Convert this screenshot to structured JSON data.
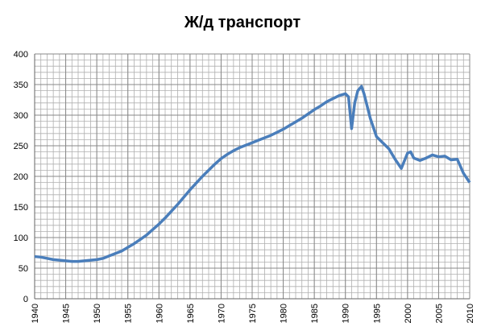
{
  "chart_data": {
    "type": "line",
    "title": "Ж/д транспорт",
    "x": [
      1940,
      1941,
      1942,
      1943,
      1944,
      1945,
      1946,
      1947,
      1948,
      1949,
      1950,
      1951,
      1952,
      1953,
      1954,
      1955,
      1956,
      1957,
      1958,
      1959,
      1960,
      1961,
      1962,
      1963,
      1964,
      1965,
      1966,
      1967,
      1968,
      1969,
      1970,
      1971,
      1972,
      1973,
      1974,
      1975,
      1976,
      1977,
      1978,
      1979,
      1980,
      1981,
      1982,
      1983,
      1984,
      1985,
      1986,
      1987,
      1988,
      1989,
      1990,
      1990.5,
      1991,
      1991.5,
      1992,
      1992.6,
      1993,
      1994,
      1995,
      1996,
      1997,
      1998,
      1999,
      2000,
      2000.5,
      2001,
      2002,
      2003,
      2004,
      2005,
      2006,
      2007,
      2008,
      2009,
      2010
    ],
    "series": [
      {
        "name": "Ж/д транспорт",
        "color": "#4a7ebb",
        "values": [
          69,
          68,
          66,
          64,
          63,
          62,
          61,
          61,
          62,
          63,
          64,
          66,
          70,
          74,
          78,
          84,
          90,
          97,
          104,
          113,
          122,
          132,
          143,
          154,
          166,
          178,
          189,
          200,
          210,
          220,
          229,
          236,
          242,
          247,
          251,
          255,
          259,
          263,
          267,
          272,
          277,
          283,
          289,
          295,
          302,
          309,
          315,
          322,
          327,
          332,
          335,
          330,
          278,
          320,
          340,
          347,
          335,
          295,
          265,
          255,
          245,
          228,
          213,
          238,
          240,
          230,
          226,
          230,
          235,
          232,
          233,
          227,
          228,
          205,
          190
        ]
      }
    ],
    "xlim": [
      1940,
      2010
    ],
    "xticks": [
      1940,
      1945,
      1950,
      1955,
      1960,
      1965,
      1970,
      1975,
      1980,
      1985,
      1990,
      1995,
      2000,
      2005,
      2010
    ],
    "ylim": [
      0,
      400
    ],
    "yticks": [
      0,
      50,
      100,
      150,
      200,
      250,
      300,
      350,
      400
    ],
    "grid": true,
    "xminor": [
      1940,
      1941,
      1942,
      1943,
      1944,
      1945,
      1946,
      1947,
      1948,
      1949,
      1950,
      1951,
      1952,
      1953,
      1954,
      1955,
      1956,
      1957,
      1958,
      1959,
      1960,
      1961,
      1962,
      1963,
      1964,
      1965,
      1966,
      1967,
      1968,
      1969,
      1970,
      1971,
      1972,
      1973,
      1974,
      1975,
      1976,
      1977,
      1978,
      1979,
      1980,
      1981,
      1982,
      1983,
      1984,
      1985,
      1986,
      1987,
      1988,
      1989,
      1990,
      1991,
      1992,
      1993,
      1994,
      1995,
      1996,
      1997,
      1998,
      1999,
      2000,
      2001,
      2002,
      2003,
      2004,
      2005,
      2006,
      2007,
      2008,
      2009,
      2010
    ],
    "yminor": [
      0,
      10,
      20,
      30,
      40,
      50,
      60,
      70,
      80,
      90,
      100,
      110,
      120,
      130,
      140,
      150,
      160,
      170,
      180,
      190,
      200,
      210,
      220,
      230,
      240,
      250,
      260,
      270,
      280,
      290,
      300,
      310,
      320,
      330,
      340,
      350,
      360,
      370,
      380,
      390,
      400
    ]
  }
}
